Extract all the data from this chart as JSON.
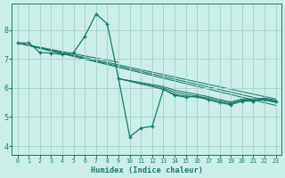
{
  "xlabel": "Humidex (Indice chaleur)",
  "bg_color": "#cceee8",
  "grid_color": "#aad4ce",
  "line_color": "#1a7a6a",
  "xlim": [
    -0.5,
    23.5
  ],
  "ylim": [
    3.7,
    8.9
  ],
  "xticks": [
    0,
    1,
    2,
    3,
    4,
    5,
    6,
    7,
    8,
    9,
    10,
    11,
    12,
    13,
    14,
    15,
    16,
    17,
    18,
    19,
    20,
    21,
    22,
    23
  ],
  "yticks": [
    4,
    5,
    6,
    7,
    8
  ],
  "straight_lines": [
    {
      "x": [
        0,
        23
      ],
      "y": [
        7.55,
        5.62
      ]
    },
    {
      "x": [
        0,
        23
      ],
      "y": [
        7.55,
        5.5
      ]
    },
    {
      "x": [
        0,
        23
      ],
      "y": [
        7.55,
        5.4
      ]
    },
    {
      "x": [
        0,
        9
      ],
      "y": [
        7.55,
        6.88
      ]
    }
  ],
  "main_series": {
    "x": [
      0,
      1,
      2,
      3,
      4,
      5,
      6,
      7,
      8,
      9,
      10,
      11,
      12,
      13,
      14,
      15,
      16,
      17,
      18,
      19,
      20,
      21,
      22,
      23
    ],
    "y": [
      7.55,
      7.55,
      7.22,
      7.2,
      7.15,
      7.22,
      7.78,
      8.55,
      8.2,
      6.32,
      4.32,
      4.62,
      4.68,
      5.95,
      5.75,
      5.68,
      5.72,
      5.6,
      5.5,
      5.42,
      5.55,
      5.55,
      5.6,
      5.52
    ]
  },
  "cluster_series": [
    {
      "x": [
        9,
        13,
        14,
        15,
        16,
        17,
        18,
        19,
        20,
        21,
        22,
        23
      ],
      "y": [
        6.32,
        5.95,
        5.78,
        5.72,
        5.68,
        5.6,
        5.5,
        5.45,
        5.55,
        5.55,
        5.6,
        5.52
      ]
    },
    {
      "x": [
        9,
        13,
        14,
        15,
        16,
        17,
        18,
        19,
        20,
        21,
        22,
        23
      ],
      "y": [
        6.32,
        6.0,
        5.85,
        5.78,
        5.72,
        5.65,
        5.55,
        5.48,
        5.58,
        5.58,
        5.62,
        5.55
      ]
    },
    {
      "x": [
        9,
        13,
        14,
        15,
        16,
        17,
        18,
        19,
        20,
        21,
        22,
        23
      ],
      "y": [
        6.32,
        6.05,
        5.92,
        5.85,
        5.78,
        5.7,
        5.6,
        5.52,
        5.62,
        5.62,
        5.65,
        5.58
      ]
    }
  ]
}
